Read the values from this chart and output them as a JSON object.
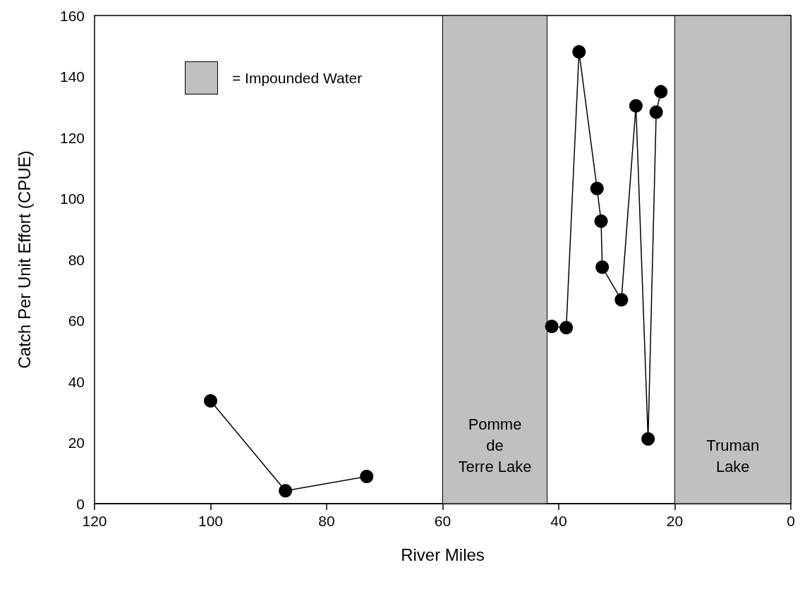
{
  "chart_data": {
    "type": "line",
    "xlabel": "River Miles",
    "ylabel": "Catch Per Unit Effort (CPUE)",
    "xlim": [
      120,
      0
    ],
    "xticks": [
      120,
      100,
      80,
      60,
      40,
      20,
      0
    ],
    "ylim": [
      0,
      160
    ],
    "yticks": [
      0,
      20,
      40,
      60,
      80,
      100,
      120,
      140,
      160
    ],
    "marker": "circle",
    "series": [
      {
        "color": "#000000",
        "x": [
          100,
          87.1,
          73.1
        ],
        "values": [
          33.7,
          4.2,
          8.9
        ]
      },
      {
        "color": "#000000",
        "x": [
          41.2,
          38.7,
          36.5,
          33.4,
          32.7,
          32.5,
          29.2,
          26.7,
          24.6,
          23.2,
          22.4
        ],
        "values": [
          58.1,
          57.7,
          148.1,
          103.3,
          92.6,
          77.5,
          66.8,
          130.4,
          21.2,
          128.3,
          135.0
        ]
      }
    ],
    "bands": [
      {
        "axis": "x",
        "from": 60,
        "to": 42,
        "label": "Pomme\nde\nTerre Lake",
        "color": "#c0c0c0"
      },
      {
        "axis": "x",
        "from": 20,
        "to": 0,
        "label": "Truman\nLake",
        "color": "#c0c0c0"
      }
    ],
    "annotations": [
      "= Impounded Water"
    ]
  }
}
